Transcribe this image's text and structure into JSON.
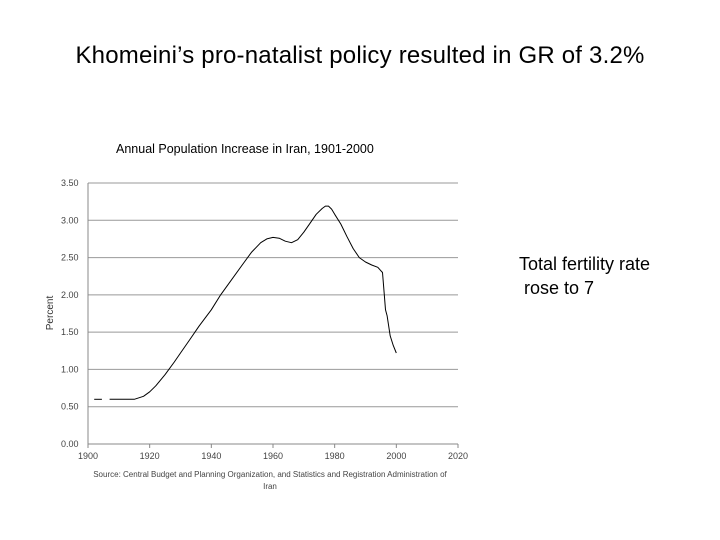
{
  "slide": {
    "title": "Khomeini’s pro-natalist policy resulted in GR of 3.2%",
    "note_line1": "Total fertility rate",
    "note_line2": " rose to 7"
  },
  "chart_data": {
    "type": "line",
    "title": "Annual Population Increase in Iran, 1901-2000",
    "ylabel": "Percent",
    "xlabel": "",
    "xlim": [
      1900,
      2020
    ],
    "ylim": [
      0,
      3.5
    ],
    "x_ticks": [
      1900,
      1920,
      1940,
      1960,
      1980,
      2000,
      2020
    ],
    "y_ticks": [
      "0.00",
      "0.50",
      "1.00",
      "1.50",
      "2.00",
      "2.50",
      "3.00",
      "3.50"
    ],
    "grid": "horizontal",
    "source_line1": "Source: Central Budget and Planning Organization, and Statistics and Registration Administration of",
    "source_line2": "Iran",
    "series": [
      {
        "name": "Annual population increase",
        "x": [
          1902,
          1904.5
        ],
        "y": [
          0.6,
          0.6
        ]
      },
      {
        "name": "Annual population increase",
        "x": [
          1907,
          1910,
          1915,
          1918,
          1920,
          1922,
          1925,
          1928,
          1930,
          1933,
          1936,
          1940,
          1943,
          1946,
          1950,
          1953,
          1956,
          1958,
          1960,
          1962,
          1964,
          1966,
          1968,
          1970,
          1972,
          1974,
          1976,
          1977,
          1978,
          1979,
          1980,
          1982,
          1984,
          1986,
          1988,
          1990,
          1992,
          1994,
          1995.5,
          1996,
          1996.5,
          1997,
          1998,
          1999,
          2000
        ],
        "y": [
          0.6,
          0.6,
          0.6,
          0.64,
          0.7,
          0.78,
          0.93,
          1.1,
          1.22,
          1.4,
          1.58,
          1.8,
          2.0,
          2.17,
          2.4,
          2.57,
          2.7,
          2.75,
          2.77,
          2.76,
          2.72,
          2.7,
          2.74,
          2.84,
          2.96,
          3.08,
          3.16,
          3.19,
          3.19,
          3.15,
          3.08,
          2.95,
          2.78,
          2.62,
          2.5,
          2.44,
          2.4,
          2.37,
          2.3,
          2.05,
          1.8,
          1.72,
          1.45,
          1.32,
          1.22
        ]
      }
    ]
  }
}
